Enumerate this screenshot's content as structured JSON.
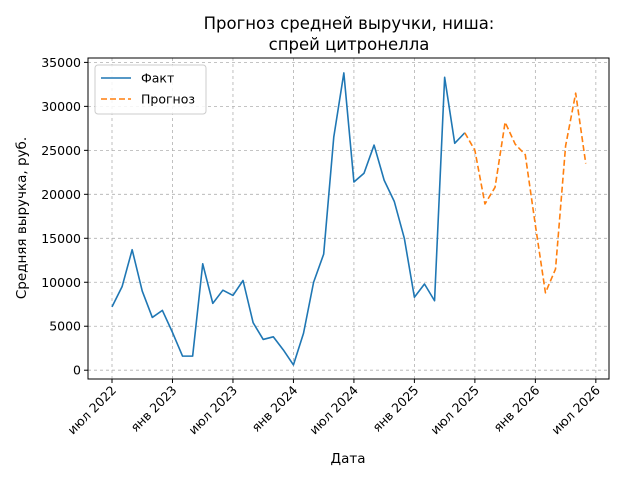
{
  "chart_data": {
    "type": "line",
    "title_line1": "Прогноз средней выручки, ниша:",
    "title_line2": "спрей цитронелла",
    "xlabel": "Дата",
    "ylabel": "Средняя выручка, руб.",
    "x_tick_labels": [
      "июл 2022",
      "янв 2023",
      "июл 2023",
      "янв 2024",
      "июл 2024",
      "янв 2025",
      "июл 2025",
      "янв 2026",
      "июл 2026"
    ],
    "y_ticks": [
      0,
      5000,
      10000,
      15000,
      20000,
      25000,
      30000,
      35000
    ],
    "y_tick_labels": [
      "0",
      "5000",
      "10000",
      "15000",
      "20000",
      "25000",
      "30000",
      "35000"
    ],
    "ylim": [
      -1000,
      35500
    ],
    "grid": true,
    "legend_position": "top-left",
    "series": [
      {
        "name": "Факт",
        "color": "#1f77b4",
        "style": "solid",
        "x": [
          "2022-07",
          "2022-08",
          "2022-09",
          "2022-10",
          "2022-11",
          "2022-12",
          "2023-01",
          "2023-02",
          "2023-03",
          "2023-04",
          "2023-05",
          "2023-06",
          "2023-07",
          "2023-08",
          "2023-09",
          "2023-10",
          "2023-11",
          "2023-12",
          "2024-01",
          "2024-02",
          "2024-03",
          "2024-04",
          "2024-05",
          "2024-06",
          "2024-07",
          "2024-08",
          "2024-09",
          "2024-10",
          "2024-11",
          "2024-12",
          "2025-01",
          "2025-02",
          "2025-03",
          "2025-04",
          "2025-05",
          "2025-06"
        ],
        "values": [
          7200,
          9500,
          13700,
          9000,
          6000,
          6800,
          4300,
          1600,
          1600,
          12100,
          7600,
          9100,
          8500,
          10200,
          5400,
          3500,
          3800,
          2300,
          600,
          4200,
          10000,
          13200,
          26500,
          33800,
          21400,
          22400,
          25600,
          21600,
          19200,
          15000,
          8300,
          9800,
          7900,
          33300,
          25800,
          27000
        ]
      },
      {
        "name": "Прогноз",
        "color": "#ff7f0e",
        "style": "dashed",
        "x": [
          "2025-06",
          "2025-07",
          "2025-08",
          "2025-09",
          "2025-10",
          "2025-11",
          "2025-12",
          "2026-01",
          "2026-02",
          "2026-03",
          "2026-04",
          "2026-05",
          "2026-06"
        ],
        "values": [
          27000,
          25000,
          18900,
          20800,
          28200,
          25700,
          24500,
          16500,
          8800,
          11500,
          25500,
          31500,
          23500
        ]
      }
    ]
  }
}
